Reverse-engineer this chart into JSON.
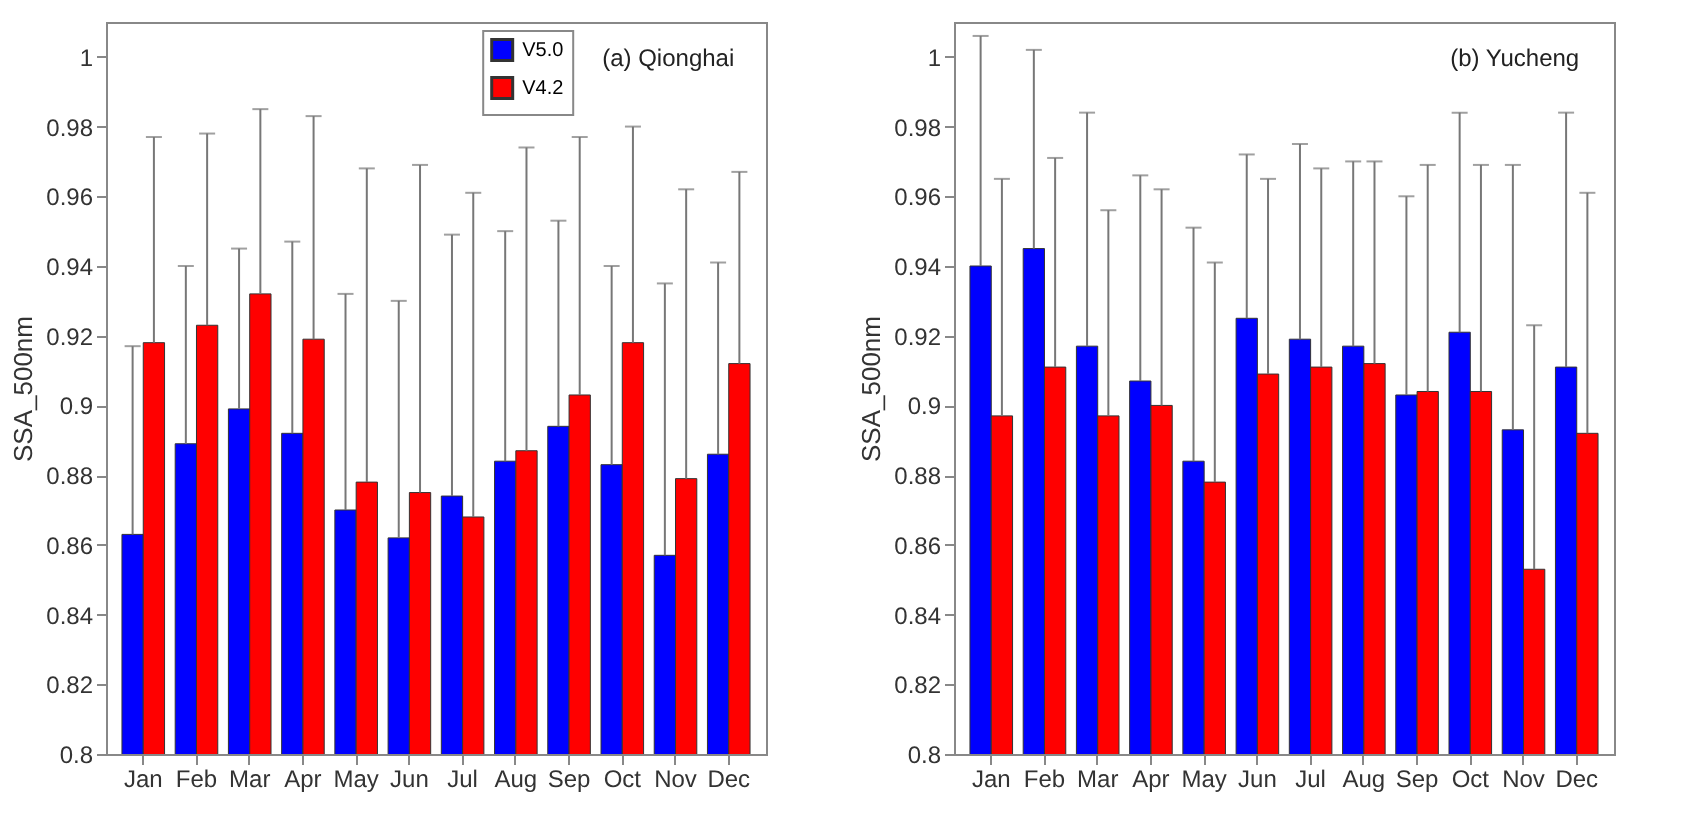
{
  "chart_data": [
    {
      "type": "bar",
      "title": "(a) Qionghai",
      "ylabel": "SSA_500nm",
      "categories": [
        "Jan",
        "Feb",
        "Mar",
        "Apr",
        "May",
        "Jun",
        "Jul",
        "Aug",
        "Sep",
        "Oct",
        "Nov",
        "Dec"
      ],
      "ylim": [
        0.8,
        1.01
      ],
      "yticks": [
        0.8,
        0.82,
        0.84,
        0.86,
        0.88,
        0.9,
        0.92,
        0.94,
        0.96,
        0.98,
        1
      ],
      "grid": false,
      "legend": "top right",
      "series": [
        {
          "name": "V5.0",
          "color": "#0000ff",
          "values": [
            0.863,
            0.889,
            0.899,
            0.892,
            0.87,
            0.862,
            0.874,
            0.884,
            0.894,
            0.883,
            0.857,
            0.886
          ],
          "errors": [
            [
              0.863,
              0.917
            ],
            [
              0.889,
              0.94
            ],
            [
              0.899,
              0.945
            ],
            [
              0.892,
              0.947
            ],
            [
              0.87,
              0.932
            ],
            [
              0.862,
              0.93
            ],
            [
              0.874,
              0.949
            ],
            [
              0.884,
              0.95
            ],
            [
              0.894,
              0.953
            ],
            [
              0.883,
              0.94
            ],
            [
              0.857,
              0.935
            ],
            [
              0.886,
              0.941
            ]
          ]
        },
        {
          "name": "V4.2",
          "color": "#ff0000",
          "values": [
            0.918,
            0.923,
            0.932,
            0.919,
            0.878,
            0.875,
            0.868,
            0.887,
            0.903,
            0.918,
            0.879,
            0.912
          ],
          "errors": [
            [
              0.918,
              0.977
            ],
            [
              0.923,
              0.978
            ],
            [
              0.932,
              0.985
            ],
            [
              0.919,
              0.983
            ],
            [
              0.878,
              0.968
            ],
            [
              0.875,
              0.969
            ],
            [
              0.868,
              0.961
            ],
            [
              0.887,
              0.974
            ],
            [
              0.903,
              0.977
            ],
            [
              0.918,
              0.98
            ],
            [
              0.879,
              0.962
            ],
            [
              0.912,
              0.967
            ]
          ]
        }
      ]
    },
    {
      "type": "bar",
      "title": "(b) Yucheng",
      "ylabel": "SSA_500nm",
      "categories": [
        "Jan",
        "Feb",
        "Mar",
        "Apr",
        "May",
        "Jun",
        "Jul",
        "Aug",
        "Sep",
        "Oct",
        "Nov",
        "Dec"
      ],
      "ylim": [
        0.8,
        1.01
      ],
      "yticks": [
        0.8,
        0.82,
        0.84,
        0.86,
        0.88,
        0.9,
        0.92,
        0.94,
        0.96,
        0.98,
        1
      ],
      "grid": false,
      "legend": "top right",
      "series": [
        {
          "name": "V5.0",
          "color": "#0000ff",
          "values": [
            0.94,
            0.945,
            0.917,
            0.907,
            0.884,
            0.925,
            0.919,
            0.917,
            0.903,
            0.921,
            0.893,
            0.911
          ],
          "errors": [
            [
              0.94,
              1.006
            ],
            [
              0.945,
              1.002
            ],
            [
              0.917,
              0.984
            ],
            [
              0.907,
              0.966
            ],
            [
              0.884,
              0.951
            ],
            [
              0.925,
              0.972
            ],
            [
              0.919,
              0.975
            ],
            [
              0.917,
              0.97
            ],
            [
              0.903,
              0.96
            ],
            [
              0.921,
              0.984
            ],
            [
              0.893,
              0.969
            ],
            [
              0.911,
              0.984
            ]
          ]
        },
        {
          "name": "V4.2",
          "color": "#ff0000",
          "values": [
            0.897,
            0.911,
            0.897,
            0.9,
            0.878,
            0.909,
            0.911,
            0.912,
            0.904,
            0.904,
            0.853,
            0.892
          ],
          "errors": [
            [
              0.897,
              0.965
            ],
            [
              0.911,
              0.971
            ],
            [
              0.897,
              0.956
            ],
            [
              0.9,
              0.962
            ],
            [
              0.878,
              0.941
            ],
            [
              0.909,
              0.965
            ],
            [
              0.911,
              0.968
            ],
            [
              0.912,
              0.97
            ],
            [
              0.904,
              0.969
            ],
            [
              0.904,
              0.969
            ],
            [
              0.853,
              0.923
            ],
            [
              0.892,
              0.961
            ]
          ]
        }
      ]
    }
  ]
}
